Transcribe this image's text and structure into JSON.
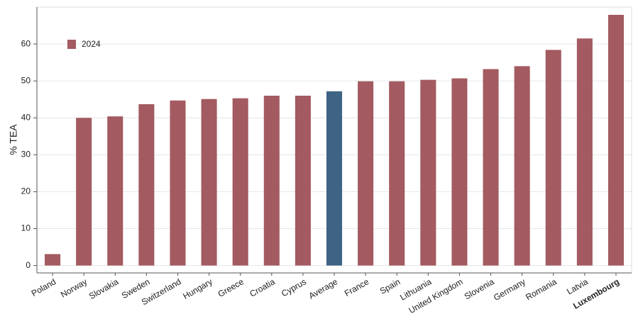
{
  "chart_data": {
    "type": "bar",
    "y_label": "% TEA",
    "categories": [
      "Poland",
      "Norway",
      "Slovakia",
      "Sweden",
      "Switzerland",
      "Hungary",
      "Greece",
      "Croatia",
      "Cyprus",
      "Average",
      "France",
      "Spain",
      "Lithuania",
      "United Kingdom",
      "Slovenia",
      "Germany",
      "Romania",
      "Latvia",
      "Luxembourg"
    ],
    "series": [
      {
        "name": "2024",
        "color": "#a35a60",
        "values": [
          3.1,
          40,
          40.4,
          43.7,
          44.7,
          45.1,
          45.3,
          46,
          46,
          47.2,
          49.9,
          49.9,
          50.3,
          50.7,
          53.2,
          54,
          58.4,
          61.5,
          67.9
        ],
        "colors": [
          "#a35a60",
          "#a35a60",
          "#a35a60",
          "#a35a60",
          "#a35a60",
          "#a35a60",
          "#a35a60",
          "#a35a60",
          "#a35a60",
          "#3e6384",
          "#a35a60",
          "#a35a60",
          "#a35a60",
          "#a35a60",
          "#a35a60",
          "#a35a60",
          "#a35a60",
          "#a35a60",
          "#a35a60"
        ]
      }
    ],
    "bold_categories": [
      18
    ],
    "ylim": [
      -2,
      70
    ],
    "yticks": [
      0,
      10,
      20,
      30,
      40,
      50,
      60
    ],
    "grid": true,
    "legend": "top-left"
  }
}
